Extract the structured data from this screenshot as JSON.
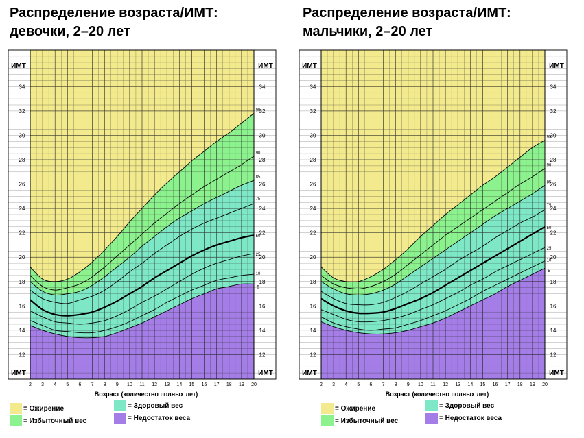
{
  "charts": [
    {
      "title_line1": "Распределение возраста/ИМТ:",
      "title_line2": "девочки, 2–20 лет"
    },
    {
      "title_line1": "Распределение возраста/ИМТ:",
      "title_line2": "мальчики, 2–20 лет"
    }
  ],
  "legend": {
    "obesity": "Ожирение",
    "overweight": "Избыточный вес",
    "healthy": "Здоровый вес",
    "underweight": "Недостаток веса",
    "prefix": "="
  },
  "colors": {
    "obesity": "#f3ea8e",
    "overweight": "#8cf28e",
    "healthy": "#7ee8c6",
    "underweight": "#a47ee6",
    "grid": "#222222"
  },
  "chart_data": [
    {
      "type": "line",
      "title": "Распределение возраста/ИМТ: девочки, 2–20 лет",
      "xlabel": "Возраст (количество полных лет)",
      "ylabel": "ИМТ",
      "xlim": [
        2,
        20
      ],
      "ylim": [
        10,
        37
      ],
      "x": [
        2,
        3,
        4,
        5,
        6,
        7,
        8,
        9,
        10,
        11,
        12,
        13,
        14,
        15,
        16,
        17,
        18,
        19,
        20
      ],
      "x_ticks": [
        2,
        3,
        4,
        5,
        6,
        7,
        8,
        9,
        10,
        11,
        12,
        13,
        14,
        15,
        16,
        17,
        18,
        19,
        20
      ],
      "y_ticks": [
        12,
        14,
        16,
        18,
        20,
        22,
        24,
        26,
        28,
        30,
        32,
        34
      ],
      "series": [
        {
          "name": "5",
          "values": [
            14.4,
            14.0,
            13.7,
            13.5,
            13.4,
            13.4,
            13.5,
            13.8,
            14.2,
            14.6,
            15.1,
            15.6,
            16.1,
            16.6,
            17.0,
            17.4,
            17.6,
            17.8,
            17.8
          ]
        },
        {
          "name": "10",
          "values": [
            14.8,
            14.4,
            14.0,
            13.9,
            13.8,
            13.8,
            14.0,
            14.3,
            14.7,
            15.2,
            15.7,
            16.3,
            16.8,
            17.3,
            17.7,
            18.1,
            18.3,
            18.5,
            18.6
          ]
        },
        {
          "name": "25",
          "values": [
            15.6,
            15.1,
            14.7,
            14.6,
            14.5,
            14.6,
            14.8,
            15.2,
            15.7,
            16.3,
            16.8,
            17.4,
            18.0,
            18.6,
            19.1,
            19.5,
            19.8,
            20.1,
            20.3
          ]
        },
        {
          "name": "50",
          "values": [
            16.5,
            15.7,
            15.3,
            15.2,
            15.3,
            15.5,
            15.9,
            16.4,
            17.0,
            17.6,
            18.3,
            18.9,
            19.5,
            20.1,
            20.6,
            21.0,
            21.3,
            21.6,
            21.8
          ]
        },
        {
          "name": "75",
          "values": [
            17.3,
            16.6,
            16.3,
            16.2,
            16.5,
            16.8,
            17.3,
            18.0,
            18.8,
            19.5,
            20.3,
            21.0,
            21.7,
            22.3,
            22.8,
            23.2,
            23.6,
            24.0,
            24.4
          ]
        },
        {
          "name": "85",
          "values": [
            18.0,
            17.2,
            16.9,
            17.0,
            17.2,
            17.7,
            18.4,
            19.2,
            20.0,
            20.9,
            21.7,
            22.5,
            23.2,
            23.8,
            24.4,
            24.9,
            25.4,
            25.9,
            26.3
          ]
        },
        {
          "name": "90",
          "values": [
            18.5,
            17.6,
            17.3,
            17.5,
            17.8,
            18.4,
            19.2,
            20.1,
            21.0,
            21.9,
            22.8,
            23.6,
            24.4,
            25.1,
            25.8,
            26.4,
            27.0,
            27.6,
            28.3
          ]
        },
        {
          "name": "95",
          "values": [
            19.2,
            18.2,
            18.0,
            18.2,
            18.8,
            19.6,
            20.6,
            21.7,
            22.9,
            24.0,
            25.1,
            26.1,
            27.0,
            27.9,
            28.7,
            29.5,
            30.2,
            31.0,
            31.8
          ]
        }
      ],
      "series_labels": [
        "5",
        "10",
        "25",
        "50",
        "75",
        "85",
        "90",
        "95"
      ],
      "zones": [
        "obesity",
        "overweight",
        "healthy",
        "underweight"
      ]
    },
    {
      "type": "line",
      "title": "Распределение возраста/ИМТ: мальчики, 2–20 лет",
      "xlabel": "Возраст (количество полных лет)",
      "ylabel": "ИМТ",
      "xlim": [
        2,
        20
      ],
      "ylim": [
        10,
        37
      ],
      "x": [
        2,
        3,
        4,
        5,
        6,
        7,
        8,
        9,
        10,
        11,
        12,
        13,
        14,
        15,
        16,
        17,
        18,
        19,
        20
      ],
      "x_ticks": [
        2,
        3,
        4,
        5,
        6,
        7,
        8,
        9,
        10,
        11,
        12,
        13,
        14,
        15,
        16,
        17,
        18,
        19,
        20
      ],
      "y_ticks": [
        12,
        14,
        16,
        18,
        20,
        22,
        24,
        26,
        28,
        30,
        32,
        34
      ],
      "series": [
        {
          "name": "5",
          "values": [
            14.7,
            14.3,
            14.0,
            13.8,
            13.7,
            13.7,
            13.8,
            14.0,
            14.3,
            14.6,
            15.0,
            15.5,
            16.0,
            16.5,
            17.0,
            17.6,
            18.1,
            18.6,
            19.1
          ]
        },
        {
          "name": "10",
          "values": [
            15.1,
            14.6,
            14.3,
            14.1,
            14.0,
            14.1,
            14.2,
            14.5,
            14.8,
            15.2,
            15.6,
            16.1,
            16.6,
            17.2,
            17.7,
            18.2,
            18.7,
            19.2,
            19.7
          ]
        },
        {
          "name": "25",
          "values": [
            15.7,
            15.3,
            14.9,
            14.7,
            14.7,
            14.8,
            15.0,
            15.3,
            15.7,
            16.1,
            16.6,
            17.1,
            17.7,
            18.2,
            18.8,
            19.3,
            19.8,
            20.3,
            20.8
          ]
        },
        {
          "name": "50",
          "values": [
            16.6,
            16.0,
            15.6,
            15.4,
            15.4,
            15.5,
            15.8,
            16.2,
            16.6,
            17.1,
            17.7,
            18.3,
            18.9,
            19.5,
            20.1,
            20.7,
            21.3,
            21.9,
            22.5
          ]
        },
        {
          "name": "75",
          "values": [
            17.2,
            16.6,
            16.2,
            16.1,
            16.1,
            16.3,
            16.7,
            17.2,
            17.8,
            18.4,
            19.0,
            19.7,
            20.3,
            20.9,
            21.6,
            22.2,
            22.8,
            23.3,
            23.9
          ]
        },
        {
          "name": "85",
          "values": [
            18.0,
            17.4,
            17.0,
            16.9,
            17.0,
            17.3,
            17.8,
            18.5,
            19.2,
            19.9,
            20.6,
            21.3,
            22.0,
            22.7,
            23.4,
            24.0,
            24.6,
            25.2,
            25.9
          ]
        },
        {
          "name": "90",
          "values": [
            18.5,
            17.8,
            17.5,
            17.4,
            17.6,
            18.0,
            18.6,
            19.4,
            20.2,
            21.0,
            21.8,
            22.5,
            23.2,
            23.9,
            24.6,
            25.3,
            26.0,
            26.6,
            27.3
          ]
        },
        {
          "name": "95",
          "values": [
            19.2,
            18.3,
            18.0,
            18.0,
            18.4,
            19.0,
            19.8,
            20.7,
            21.7,
            22.6,
            23.5,
            24.3,
            25.1,
            25.9,
            26.6,
            27.4,
            28.2,
            29.0,
            29.6
          ]
        }
      ],
      "series_labels": [
        "5",
        "10",
        "25",
        "50",
        "75",
        "85",
        "90",
        "95"
      ],
      "zones": [
        "obesity",
        "overweight",
        "healthy",
        "underweight"
      ]
    }
  ]
}
